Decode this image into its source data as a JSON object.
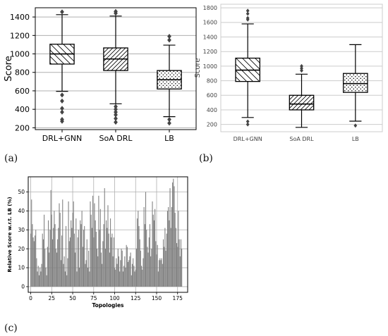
{
  "panels": [
    {
      "letter": "(a)"
    },
    {
      "letter": "(b)"
    },
    {
      "letter": "(c)"
    }
  ],
  "chart_data": [
    {
      "type": "box",
      "panel": "(a)",
      "ylabel": "Score",
      "ylim": [
        180,
        1500
      ],
      "yticks": [
        200,
        400,
        600,
        800,
        1000,
        1200,
        1400
      ],
      "grid": "horizontal",
      "categories": [
        "DRL+GNN",
        "SoA DRL",
        "LB"
      ],
      "hatch": [
        "diagonal-backslash",
        "diagonal-slash",
        "dots"
      ],
      "boxes": [
        {
          "whisker_low": 595,
          "q1": 890,
          "median": 1000,
          "q3": 1105,
          "whisker_high": 1425,
          "outliers": [
            1455,
            555,
            490,
            410,
            370,
            290,
            270
          ]
        },
        {
          "whisker_low": 460,
          "q1": 820,
          "median": 945,
          "q3": 1065,
          "whisker_high": 1410,
          "outliers": [
            1460,
            1440,
            430,
            400,
            370,
            340,
            300,
            260
          ]
        },
        {
          "whisker_low": 320,
          "q1": 620,
          "median": 720,
          "q3": 820,
          "whisker_high": 1095,
          "outliers": [
            1190,
            1150,
            290,
            250
          ]
        }
      ]
    },
    {
      "type": "box",
      "panel": "(b)",
      "ylabel": "Score",
      "ylim": [
        100,
        1850
      ],
      "yticks": [
        200,
        400,
        600,
        800,
        1000,
        1200,
        1400,
        1600,
        1800
      ],
      "grid": "horizontal",
      "categories": [
        "DRL+GNN",
        "SoA DRL",
        "LB"
      ],
      "hatch": [
        "diagonal-backslash",
        "diagonal-slash",
        "dots"
      ],
      "boxes": [
        {
          "whisker_low": 295,
          "q1": 790,
          "median": 945,
          "q3": 1110,
          "whisker_high": 1580,
          "outliers": [
            1760,
            1720,
            1660,
            1640,
            240,
            200
          ]
        },
        {
          "whisker_low": 160,
          "q1": 400,
          "median": 480,
          "q3": 600,
          "whisker_high": 890,
          "outliers": [
            1000,
            970,
            940
          ]
        },
        {
          "whisker_low": 245,
          "q1": 640,
          "median": 760,
          "q3": 900,
          "whisker_high": 1295,
          "outliers": [
            185
          ]
        }
      ]
    },
    {
      "type": "bar",
      "panel": "(c)",
      "xlabel": "Topologies",
      "ylabel": "Relative Score w.r.t. LB (%)",
      "xlim": [
        -3,
        187
      ],
      "ylim": [
        -3,
        58
      ],
      "xticks": [
        0,
        25,
        50,
        75,
        100,
        125,
        150,
        175
      ],
      "yticks": [
        0,
        10,
        20,
        30,
        40,
        50
      ],
      "grid": "both",
      "color": "#808080",
      "values": [
        28,
        46,
        33,
        26,
        24,
        27,
        30,
        15,
        8,
        11,
        6,
        10,
        8,
        12,
        28,
        25,
        38,
        20,
        10,
        6,
        21,
        35,
        18,
        30,
        51,
        38,
        25,
        31,
        40,
        33,
        20,
        18,
        25,
        31,
        44,
        39,
        14,
        27,
        46,
        12,
        16,
        8,
        32,
        6,
        15,
        45,
        24,
        26,
        35,
        31,
        39,
        45,
        28,
        18,
        36,
        8,
        26,
        30,
        10,
        35,
        33,
        40,
        21,
        30,
        32,
        12,
        14,
        25,
        10,
        19,
        8,
        45,
        38,
        31,
        48,
        26,
        44,
        35,
        29,
        20,
        16,
        48,
        30,
        41,
        18,
        12,
        24,
        33,
        52,
        20,
        35,
        31,
        43,
        28,
        18,
        36,
        26,
        28,
        16,
        26,
        10,
        9,
        15,
        12,
        20,
        16,
        8,
        14,
        20,
        19,
        8,
        11,
        16,
        10,
        22,
        21,
        13,
        14,
        16,
        18,
        6,
        12,
        15,
        11,
        8,
        9,
        20,
        36,
        40,
        32,
        25,
        19,
        11,
        9,
        15,
        42,
        33,
        50,
        30,
        21,
        18,
        26,
        33,
        16,
        20,
        45,
        38,
        35,
        41,
        24,
        17,
        22,
        8,
        14,
        15,
        14,
        15,
        12,
        25,
        21,
        31,
        19,
        28,
        40,
        42,
        35,
        52,
        31,
        42,
        55,
        57,
        53,
        39,
        31,
        23,
        21,
        40,
        25,
        16,
        25,
        20
      ]
    }
  ]
}
